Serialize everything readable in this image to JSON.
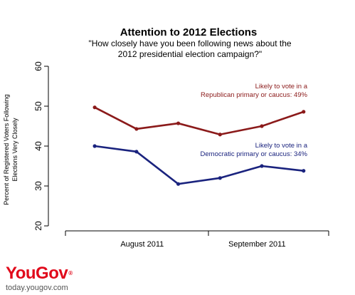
{
  "chart_data": {
    "type": "line",
    "title": "Attention to 2012 Elections",
    "subtitle": [
      "\"How closely have you been following news about the",
      "2012 presidential election campaign?\""
    ],
    "ylabel": [
      "Percent of Registered Voters Following",
      "Elections Very Closely"
    ],
    "xlabel": "",
    "ylim": [
      20,
      60
    ],
    "yticks": [
      20,
      30,
      40,
      50,
      60
    ],
    "x": [
      1,
      2,
      3,
      4,
      5,
      6
    ],
    "xlim": [
      0.3,
      6.6
    ],
    "xtick_labels": [
      {
        "label": "August 2011",
        "x": 2.0
      },
      {
        "label": "September 2011",
        "x": 4.75
      }
    ],
    "grid": false,
    "series": [
      {
        "name": [
          "Likely to vote in a",
          "Republican primary or caucus: 49%"
        ],
        "color": "#8b1a1a",
        "values": [
          49.7,
          44.3,
          45.7,
          42.9,
          45.0,
          48.6
        ]
      },
      {
        "name": [
          "Likely to vote in a",
          "Democratic primary or caucus: 34%"
        ],
        "color": "#1a237e",
        "values": [
          40.0,
          38.6,
          30.5,
          32.0,
          35.0,
          33.8
        ]
      }
    ]
  },
  "branding": {
    "logo_you": "You",
    "logo_gov": "Gov",
    "logo_reg": "®",
    "url": "today.yougov.com"
  }
}
